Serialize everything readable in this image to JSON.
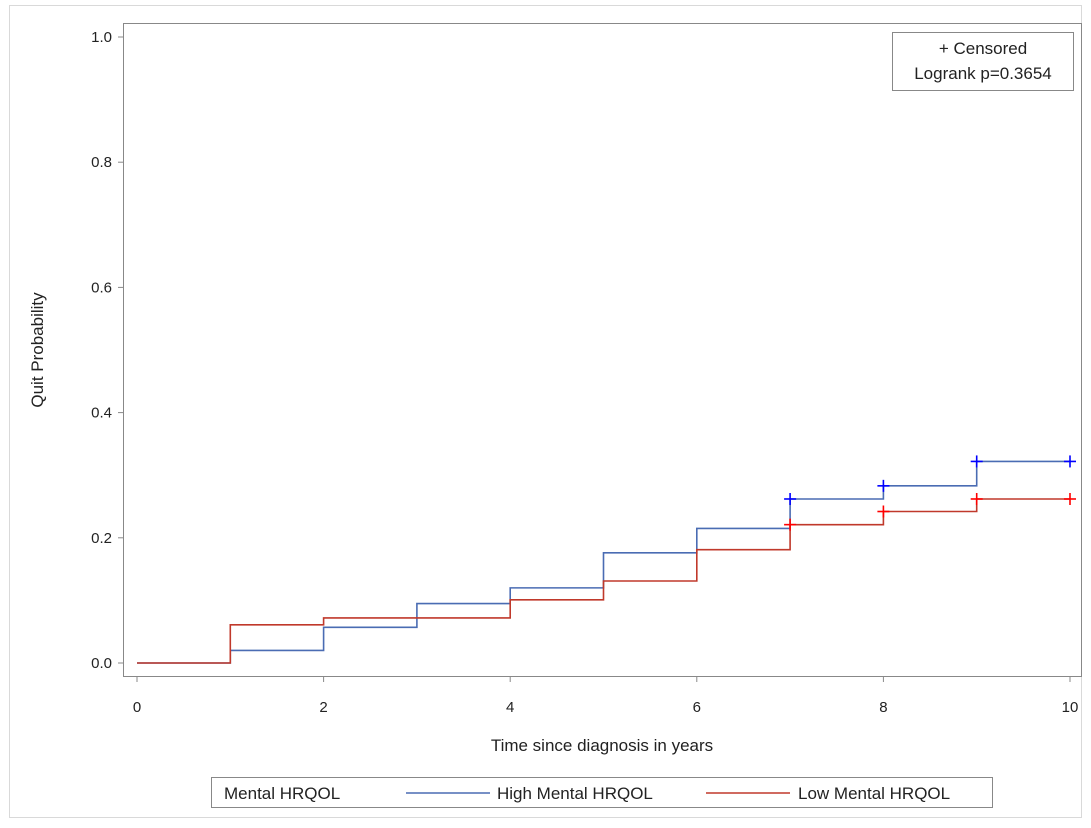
{
  "chart_data": {
    "type": "line",
    "xlabel": "Time since diagnosis in years",
    "ylabel": "Quit Probability",
    "xlim": [
      0,
      10
    ],
    "ylim": [
      0,
      1
    ],
    "x_ticks": [
      "0",
      "2",
      "4",
      "6",
      "8",
      "10"
    ],
    "y_ticks": [
      "0.0",
      "0.2",
      "0.4",
      "0.6",
      "0.8",
      "1.0"
    ],
    "x_tick_values": [
      0,
      2,
      4,
      6,
      8,
      10
    ],
    "y_tick_values": [
      0,
      0.2,
      0.4,
      0.6,
      0.8,
      1.0
    ],
    "grid": false,
    "inset": {
      "censor_label": "+ Censored",
      "test_label": "Logrank p=0.3654",
      "position": "top-right"
    },
    "legend": {
      "title": "Mental HRQOL",
      "position": "bottom"
    },
    "series": [
      {
        "name": "High Mental HRQOL",
        "color": "#4a6cb3",
        "censor_color": "#0000ff",
        "step_x": [
          0,
          1,
          2,
          3,
          4,
          5,
          6,
          7,
          8,
          9,
          10
        ],
        "step_y": [
          0.0,
          0.02,
          0.057,
          0.095,
          0.12,
          0.176,
          0.215,
          0.262,
          0.283,
          0.322,
          0.322
        ],
        "censored": [
          {
            "x": 7,
            "y": 0.262
          },
          {
            "x": 8,
            "y": 0.283
          },
          {
            "x": 9,
            "y": 0.322
          },
          {
            "x": 10,
            "y": 0.322
          }
        ]
      },
      {
        "name": "Low Mental HRQOL",
        "color": "#c0392b",
        "censor_color": "#ff0000",
        "step_x": [
          0,
          1,
          2,
          3,
          4,
          5,
          6,
          7,
          8,
          9,
          10
        ],
        "step_y": [
          0.0,
          0.061,
          0.072,
          0.072,
          0.101,
          0.131,
          0.181,
          0.221,
          0.242,
          0.262,
          0.262
        ],
        "censored": [
          {
            "x": 7,
            "y": 0.221
          },
          {
            "x": 8,
            "y": 0.242
          },
          {
            "x": 9,
            "y": 0.262
          },
          {
            "x": 10,
            "y": 0.262
          }
        ]
      }
    ]
  }
}
